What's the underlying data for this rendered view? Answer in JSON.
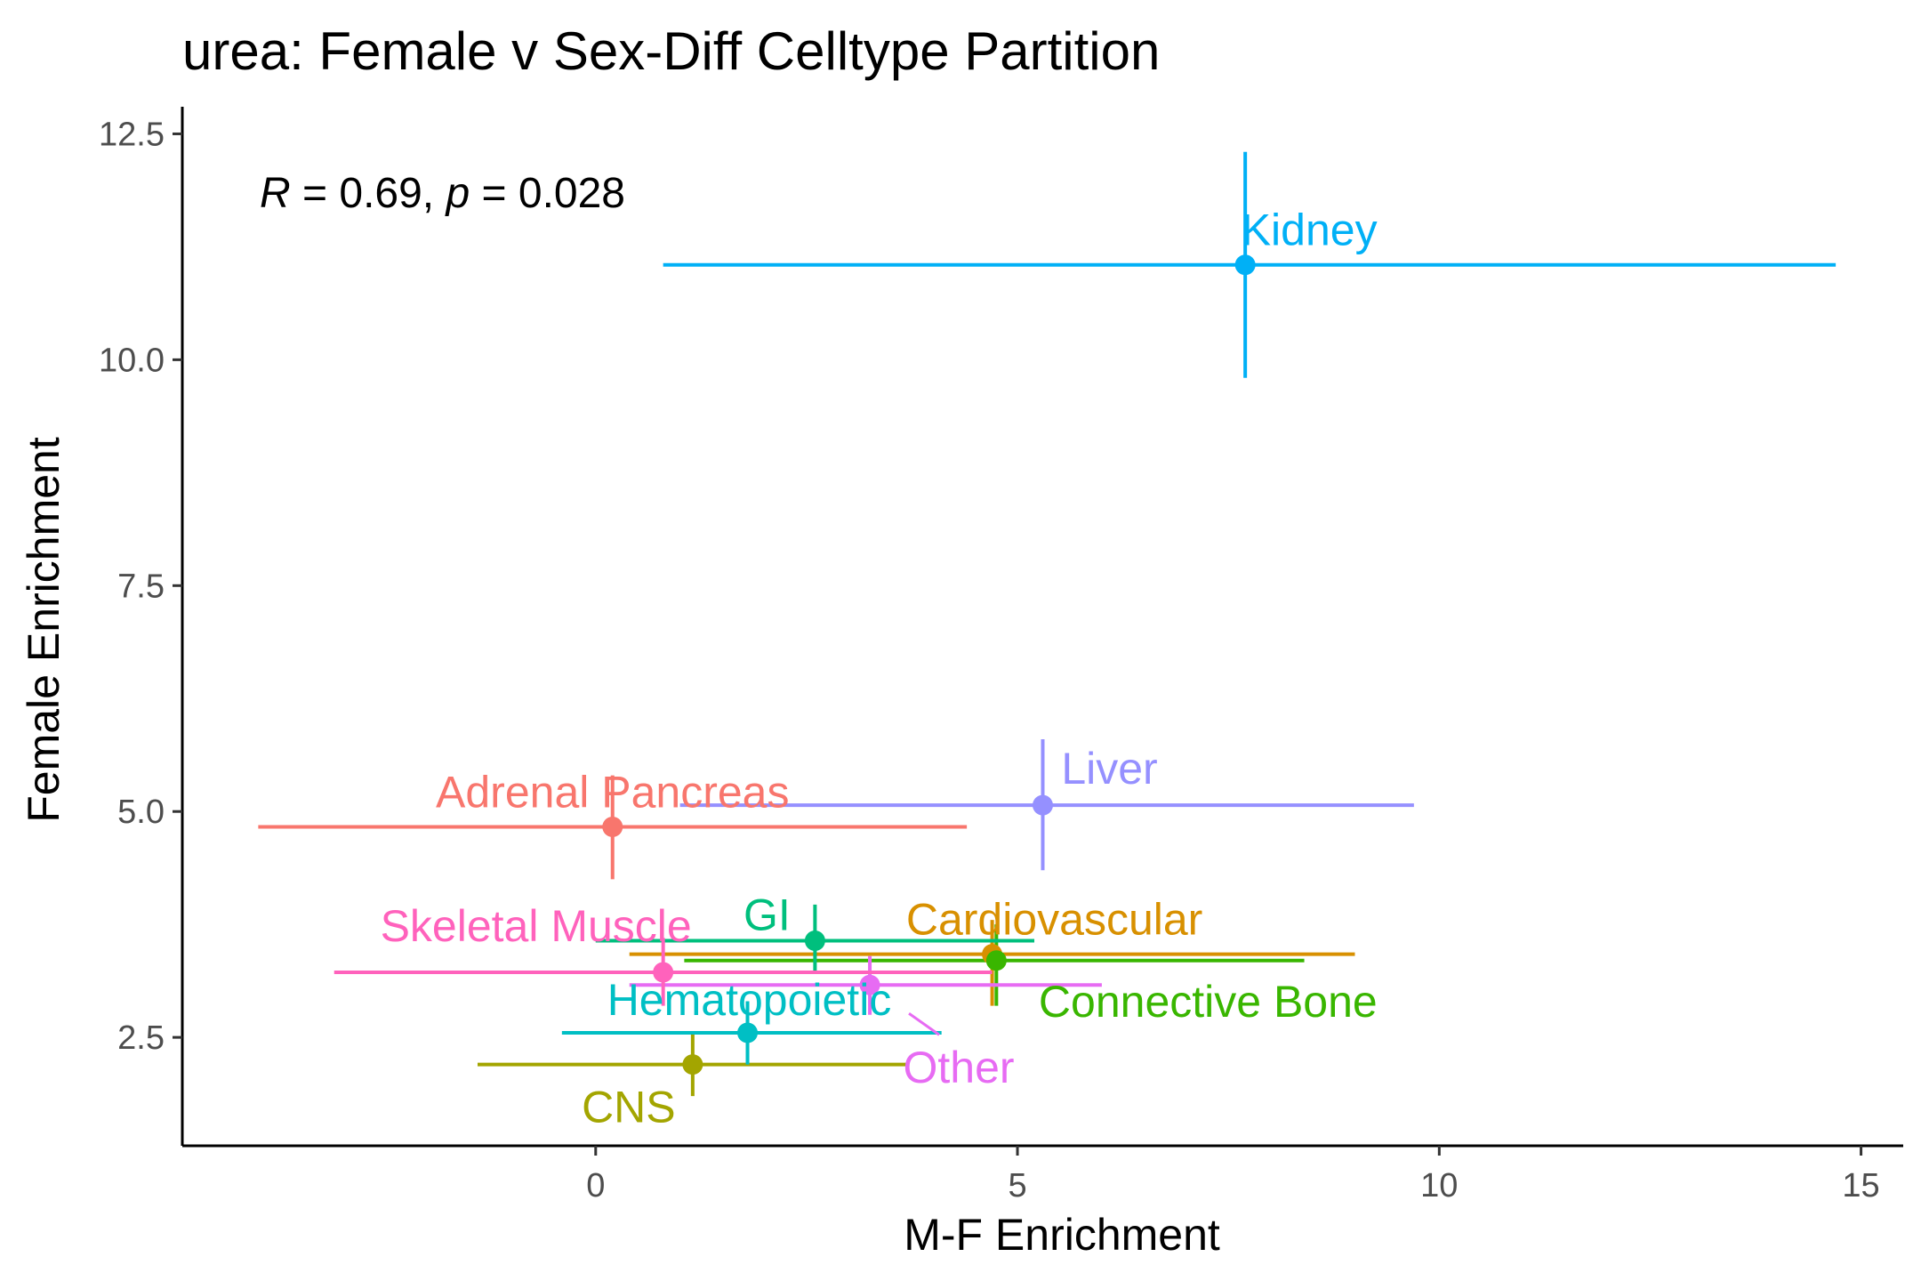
{
  "chart_data": {
    "type": "scatter",
    "title": "urea: Female v Sex-Diff Celltype Partition",
    "xlabel": "M-F Enrichment",
    "ylabel": "Female Enrichment",
    "xlim": [
      -4.9,
      15.5
    ],
    "ylim": [
      1.3,
      12.8
    ],
    "x_ticks": [
      {
        "value": 0,
        "label": "0"
      },
      {
        "value": 5,
        "label": "5"
      },
      {
        "value": 10,
        "label": "10"
      },
      {
        "value": 15,
        "label": "15"
      }
    ],
    "y_ticks": [
      {
        "value": 2.5,
        "label": "2.5"
      },
      {
        "value": 5.0,
        "label": "5.0"
      },
      {
        "value": 7.5,
        "label": "7.5"
      },
      {
        "value": 10.0,
        "label": "10.0"
      },
      {
        "value": 12.5,
        "label": "12.5"
      }
    ],
    "grid": false,
    "legend": "none",
    "annotation": {
      "r_symbol": "R",
      "r_text": " = 0.69, ",
      "p_symbol": "p",
      "p_text": " = 0.028"
    },
    "points": [
      {
        "name": "Adrenal Pancreas",
        "color": "#F8766D",
        "x": 0.2,
        "y": 4.83,
        "x_low": -4.0,
        "x_high": 4.4,
        "y_low": 4.25,
        "y_high": 5.4
      },
      {
        "name": "CNS",
        "color": "#A3A500",
        "x": 1.15,
        "y": 2.2,
        "x_low": -1.4,
        "x_high": 3.7,
        "y_low": 1.85,
        "y_high": 2.55
      },
      {
        "name": "Cardiovascular",
        "color": "#D89000",
        "x": 4.7,
        "y": 3.42,
        "x_low": 0.4,
        "x_high": 9.0,
        "y_low": 2.85,
        "y_high": 3.8
      },
      {
        "name": "Connective Bone",
        "color": "#39B600",
        "x": 4.75,
        "y": 3.35,
        "x_low": 1.05,
        "x_high": 8.4,
        "y_low": 2.85,
        "y_high": 3.75
      },
      {
        "name": "GI",
        "color": "#00BF7D",
        "x": 2.6,
        "y": 3.57,
        "x_low": 0.0,
        "x_high": 5.2,
        "y_low": 3.2,
        "y_high": 3.97
      },
      {
        "name": "Hematopoietic",
        "color": "#00BFC4",
        "x": 1.8,
        "y": 2.55,
        "x_low": -0.4,
        "x_high": 4.1,
        "y_low": 2.2,
        "y_high": 2.9
      },
      {
        "name": "Kidney",
        "color": "#00B0F6",
        "x": 7.7,
        "y": 11.05,
        "x_low": 0.8,
        "x_high": 14.7,
        "y_low": 9.8,
        "y_high": 12.3
      },
      {
        "name": "Liver",
        "color": "#9590FF",
        "x": 5.3,
        "y": 5.07,
        "x_low": 1.0,
        "x_high": 9.7,
        "y_low": 4.35,
        "y_high": 5.8
      },
      {
        "name": "Other",
        "color": "#E76BF3",
        "x": 3.25,
        "y": 3.08,
        "x_low": 0.4,
        "x_high": 6.0,
        "y_low": 2.75,
        "y_high": 3.4
      },
      {
        "name": "Skeletal Muscle",
        "color": "#FF62BC",
        "x": 0.8,
        "y": 3.22,
        "x_low": -3.1,
        "x_high": 4.7,
        "y_low": 2.85,
        "y_high": 3.6
      }
    ]
  }
}
